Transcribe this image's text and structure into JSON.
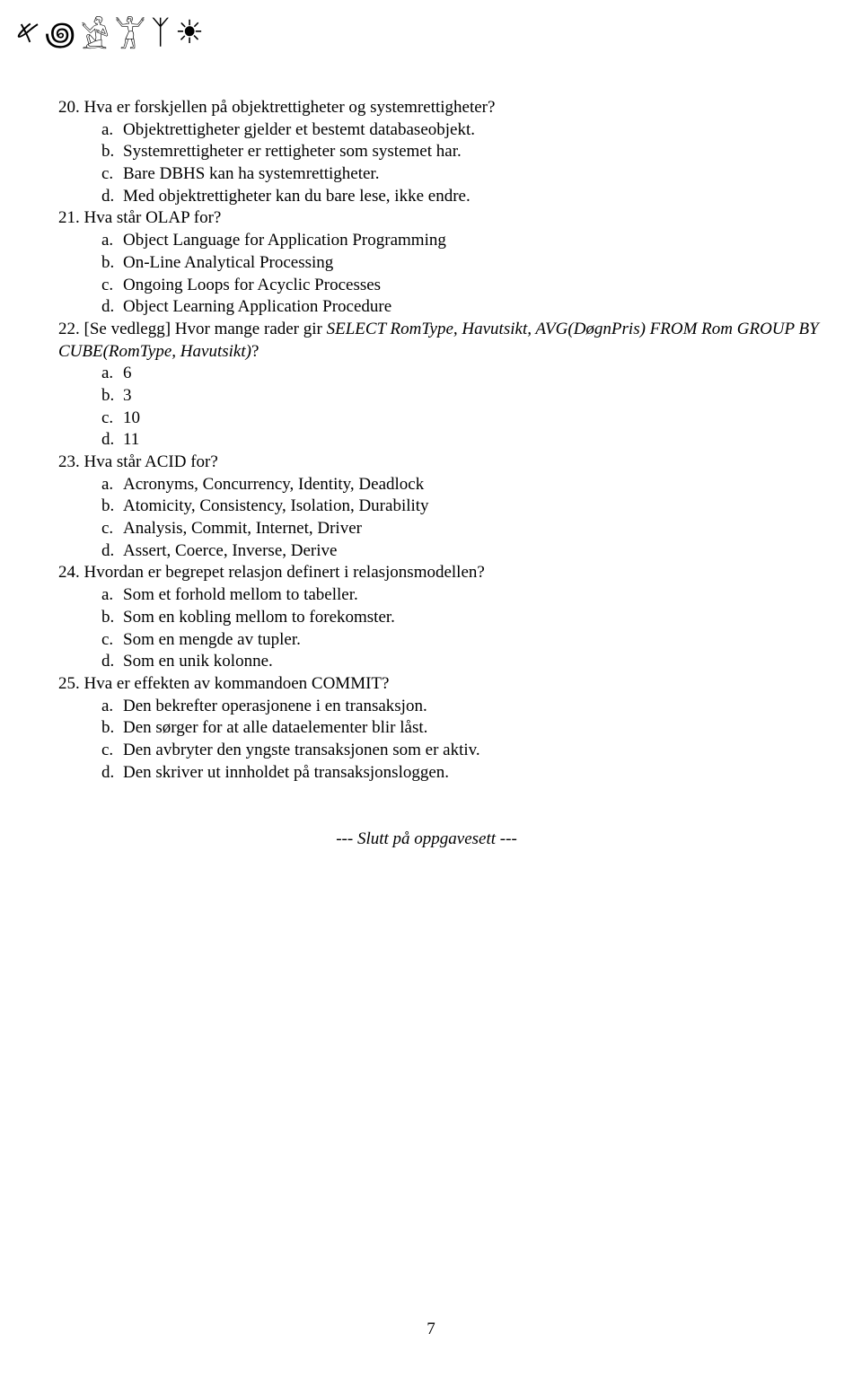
{
  "glyphs": [
    "𐤀",
    "꩜",
    "𓀀",
    "𓀠",
    "ᛉ",
    "☀"
  ],
  "questions": [
    {
      "num": "20",
      "text": "Hva er forskjellen på objektrettigheter og systemrettigheter?",
      "options": [
        {
          "label": "a.",
          "text": "Objektrettigheter gjelder et bestemt databaseobjekt."
        },
        {
          "label": "b.",
          "text": "Systemrettigheter er rettigheter som systemet har."
        },
        {
          "label": "c.",
          "text": "Bare DBHS kan ha systemrettigheter."
        },
        {
          "label": "d.",
          "text": "Med objektrettigheter kan du bare lese, ikke endre."
        }
      ]
    },
    {
      "num": "21",
      "text": "Hva står OLAP for?",
      "options": [
        {
          "label": "a.",
          "text": "Object Language for Application Programming"
        },
        {
          "label": "b.",
          "text": "On-Line Analytical Processing"
        },
        {
          "label": "c.",
          "text": "Ongoing Loops for Acyclic Processes"
        },
        {
          "label": "d.",
          "text": "Object Learning Application Procedure"
        }
      ]
    },
    {
      "num": "22",
      "text_prefix": "[Se vedlegg] Hvor mange rader gir ",
      "text_italic": "SELECT RomType, Havutsikt, AVG(DøgnPris) FROM Rom GROUP BY CUBE(RomType, Havutsikt)",
      "text_suffix": "?",
      "options": [
        {
          "label": "a.",
          "text": "6"
        },
        {
          "label": "b.",
          "text": "3"
        },
        {
          "label": "c.",
          "text": "10"
        },
        {
          "label": "d.",
          "text": "11"
        }
      ]
    },
    {
      "num": "23",
      "text": "Hva står ACID for?",
      "options": [
        {
          "label": "a.",
          "text": "Acronyms, Concurrency, Identity, Deadlock"
        },
        {
          "label": "b.",
          "text": "Atomicity, Consistency, Isolation, Durability"
        },
        {
          "label": "c.",
          "text": "Analysis, Commit, Internet, Driver"
        },
        {
          "label": "d.",
          "text": "Assert, Coerce, Inverse, Derive"
        }
      ]
    },
    {
      "num": "24",
      "text": "Hvordan er begrepet relasjon definert i relasjonsmodellen?",
      "options": [
        {
          "label": "a.",
          "text": "Som et forhold mellom to tabeller."
        },
        {
          "label": "b.",
          "text": "Som en kobling mellom to forekomster."
        },
        {
          "label": "c.",
          "text": "Som en mengde av tupler."
        },
        {
          "label": "d.",
          "text": "Som en unik kolonne."
        }
      ]
    },
    {
      "num": "25",
      "text": "Hva er effekten av kommandoen COMMIT?",
      "options": [
        {
          "label": "a.",
          "text": "Den bekrefter operasjonene i en transaksjon."
        },
        {
          "label": "b.",
          "text": "Den sørger for at alle dataelementer blir låst."
        },
        {
          "label": "c.",
          "text": "Den avbryter den yngste transaksjonen som er aktiv."
        },
        {
          "label": "d.",
          "text": "Den skriver ut innholdet på transaksjonsloggen."
        }
      ]
    }
  ],
  "footer": "--- Slutt på oppgavesett ---",
  "page_number": "7"
}
